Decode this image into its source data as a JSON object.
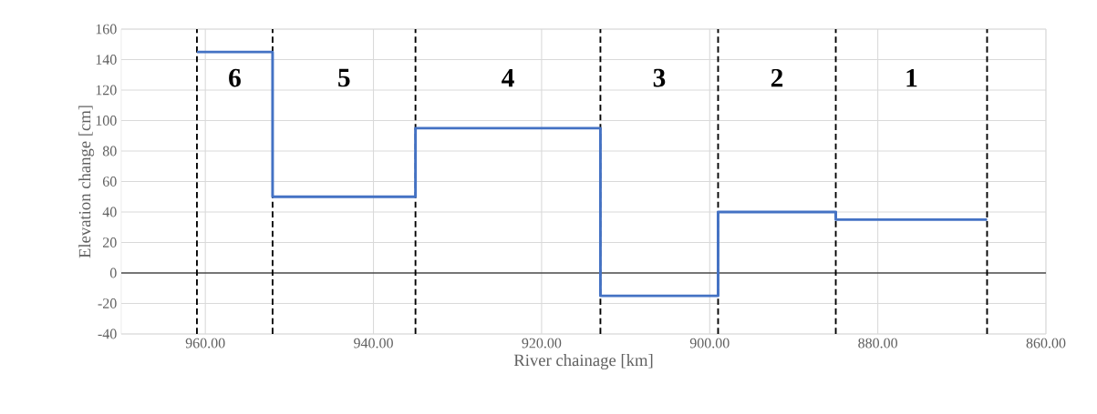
{
  "chart_data": {
    "type": "step",
    "xlabel": "River chainage [km]",
    "ylabel": "Elevation change [cm]",
    "x": [
      961,
      952,
      935,
      913,
      899,
      885,
      867
    ],
    "series": [
      {
        "color": "#4472c4",
        "values": [
          145,
          50,
          95,
          -15,
          40,
          35,
          35
        ]
      }
    ],
    "xlim": [
      970,
      860
    ],
    "xticks": [
      {
        "value": 960,
        "label": "960.00"
      },
      {
        "value": 940,
        "label": "940.00"
      },
      {
        "value": 920,
        "label": "920.00"
      },
      {
        "value": 900,
        "label": "900.00"
      },
      {
        "value": 880,
        "label": "880.00"
      },
      {
        "value": 860,
        "label": "860.00"
      }
    ],
    "ylim": [
      -40,
      160
    ],
    "yticks": [
      -40,
      -20,
      0,
      20,
      40,
      60,
      80,
      100,
      120,
      140,
      160
    ],
    "grid": true,
    "ref_lines": [
      {
        "axis": "y",
        "value": 0,
        "color": "#000000",
        "line_style": "solid"
      },
      {
        "axis": "x",
        "value": 961,
        "color": "#000000",
        "line_style": "dashed"
      },
      {
        "axis": "x",
        "value": 952,
        "color": "#000000",
        "line_style": "dashed"
      },
      {
        "axis": "x",
        "value": 935,
        "color": "#000000",
        "line_style": "dashed"
      },
      {
        "axis": "x",
        "value": 913,
        "color": "#000000",
        "line_style": "dashed"
      },
      {
        "axis": "x",
        "value": 899,
        "color": "#000000",
        "line_style": "dashed"
      },
      {
        "axis": "x",
        "value": 885,
        "color": "#000000",
        "line_style": "dashed"
      },
      {
        "axis": "x",
        "value": 867,
        "color": "#000000",
        "line_style": "dashed"
      }
    ],
    "annotations": [
      "**6**",
      "**5**",
      "**4**",
      "**3**",
      "**2**",
      "**1**"
    ]
  }
}
